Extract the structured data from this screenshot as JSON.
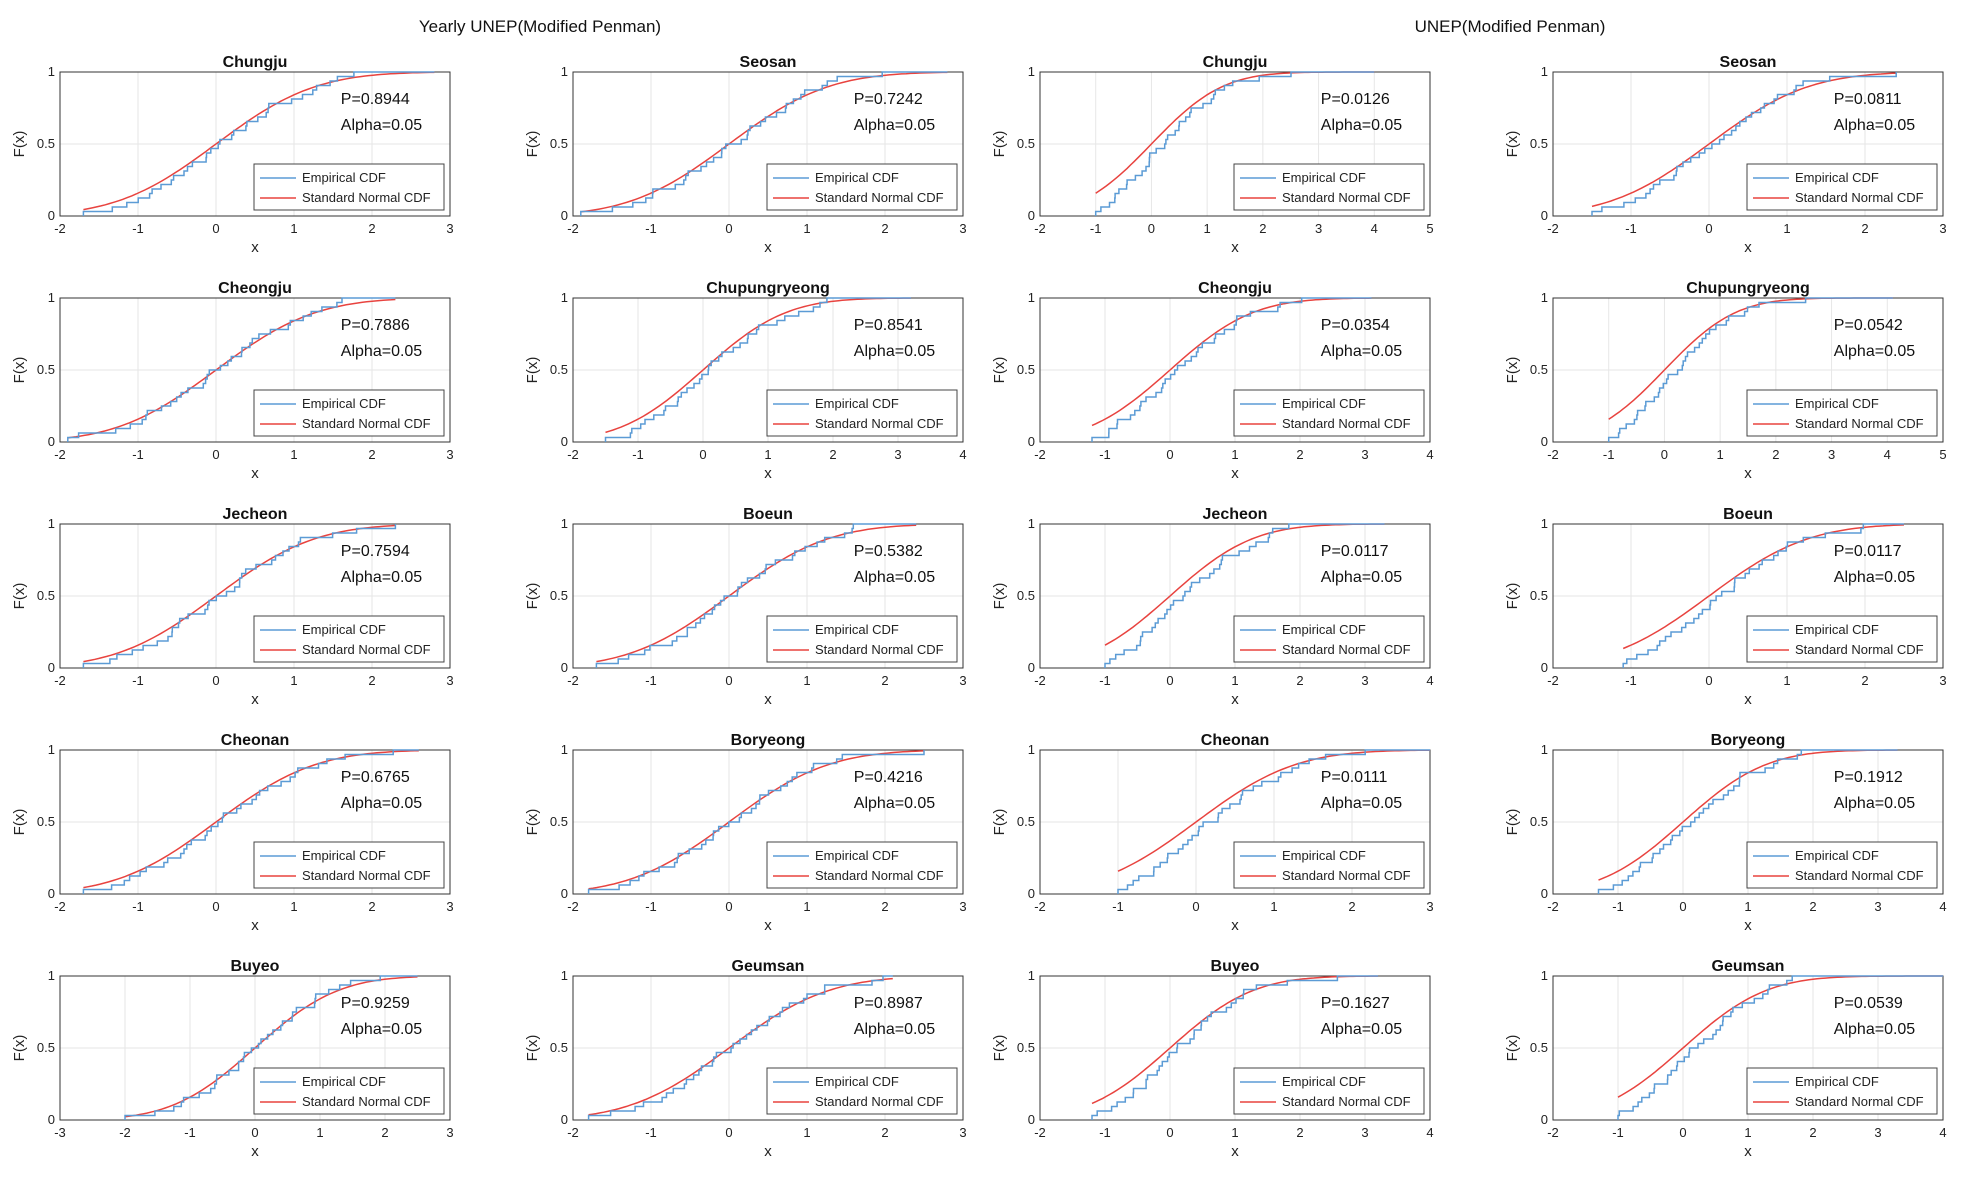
{
  "figure": {
    "group_titles": [
      "Yearly UNEP(Modified Penman)",
      "UNEP(Modified Penman)"
    ],
    "legend": [
      "Empirical CDF",
      "Standard Normal CDF"
    ],
    "colors": {
      "empirical": "#5b9bd5",
      "normal": "#e8433f",
      "grid": "#e6e6e6",
      "axis": "#333333"
    }
  },
  "chart_data": [
    {
      "type": "line",
      "title": "Chungju",
      "xlabel": "x",
      "ylabel": "F(x)",
      "xlim": [
        -2,
        3
      ],
      "ylim": [
        0,
        1
      ],
      "xticks": [
        -2,
        -1,
        0,
        1,
        2,
        3
      ],
      "yticks": [
        0,
        0.5,
        1
      ],
      "p_label": "P=0.8944",
      "alpha_label": "Alpha=0.05",
      "data_range": [
        -1.7,
        2.8
      ],
      "series": [
        {
          "name": "Empirical CDF"
        },
        {
          "name": "Standard Normal CDF"
        }
      ]
    },
    {
      "type": "line",
      "title": "Seosan",
      "xlabel": "x",
      "ylabel": "F(x)",
      "xlim": [
        -2,
        3
      ],
      "ylim": [
        0,
        1
      ],
      "xticks": [
        -2,
        -1,
        0,
        1,
        2,
        3
      ],
      "yticks": [
        0,
        0.5,
        1
      ],
      "p_label": "P=0.7242",
      "alpha_label": "Alpha=0.05",
      "data_range": [
        -1.9,
        2.8
      ],
      "series": [
        {
          "name": "Empirical CDF"
        },
        {
          "name": "Standard Normal CDF"
        }
      ]
    },
    {
      "type": "line",
      "title": "Chungju",
      "xlabel": "x",
      "ylabel": "F(x)",
      "xlim": [
        -2,
        5
      ],
      "ylim": [
        0,
        1
      ],
      "xticks": [
        -2,
        -1,
        0,
        1,
        2,
        3,
        4,
        5
      ],
      "yticks": [
        0,
        0.5,
        1
      ],
      "p_label": "P=0.0126",
      "alpha_label": "Alpha=0.05",
      "data_range": [
        -1.0,
        4.0
      ],
      "series": [
        {
          "name": "Empirical CDF"
        },
        {
          "name": "Standard Normal CDF"
        }
      ]
    },
    {
      "type": "line",
      "title": "Seosan",
      "xlabel": "x",
      "ylabel": "F(x)",
      "xlim": [
        -2,
        3
      ],
      "ylim": [
        0,
        1
      ],
      "xticks": [
        -2,
        -1,
        0,
        1,
        2,
        3
      ],
      "yticks": [
        0,
        0.5,
        1
      ],
      "p_label": "P=0.0811",
      "alpha_label": "Alpha=0.05",
      "data_range": [
        -1.5,
        2.4
      ],
      "series": [
        {
          "name": "Empirical CDF"
        },
        {
          "name": "Standard Normal CDF"
        }
      ]
    },
    {
      "type": "line",
      "title": "Cheongju",
      "xlabel": "x",
      "ylabel": "F(x)",
      "xlim": [
        -2,
        3
      ],
      "ylim": [
        0,
        1
      ],
      "xticks": [
        -2,
        -1,
        0,
        1,
        2,
        3
      ],
      "yticks": [
        0,
        0.5,
        1
      ],
      "p_label": "P=0.7886",
      "alpha_label": "Alpha=0.05",
      "data_range": [
        -1.9,
        2.3
      ],
      "series": [
        {
          "name": "Empirical CDF"
        },
        {
          "name": "Standard Normal CDF"
        }
      ]
    },
    {
      "type": "line",
      "title": "Chupungryeong",
      "xlabel": "x",
      "ylabel": "F(x)",
      "xlim": [
        -2,
        4
      ],
      "ylim": [
        0,
        1
      ],
      "xticks": [
        -2,
        -1,
        0,
        1,
        2,
        3,
        4
      ],
      "yticks": [
        0,
        0.5,
        1
      ],
      "p_label": "P=0.8541",
      "alpha_label": "Alpha=0.05",
      "data_range": [
        -1.5,
        3.2
      ],
      "series": [
        {
          "name": "Empirical CDF"
        },
        {
          "name": "Standard Normal CDF"
        }
      ]
    },
    {
      "type": "line",
      "title": "Cheongju",
      "xlabel": "x",
      "ylabel": "F(x)",
      "xlim": [
        -2,
        4
      ],
      "ylim": [
        0,
        1
      ],
      "xticks": [
        -2,
        -1,
        0,
        1,
        2,
        3,
        4
      ],
      "yticks": [
        0,
        0.5,
        1
      ],
      "p_label": "P=0.0354",
      "alpha_label": "Alpha=0.05",
      "data_range": [
        -1.2,
        3.1
      ],
      "series": [
        {
          "name": "Empirical CDF"
        },
        {
          "name": "Standard Normal CDF"
        }
      ]
    },
    {
      "type": "line",
      "title": "Chupungryeong",
      "xlabel": "x",
      "ylabel": "F(x)",
      "xlim": [
        -2,
        5
      ],
      "ylim": [
        0,
        1
      ],
      "xticks": [
        -2,
        -1,
        0,
        1,
        2,
        3,
        4,
        5
      ],
      "yticks": [
        0,
        0.5,
        1
      ],
      "p_label": "P=0.0542",
      "alpha_label": "Alpha=0.05",
      "data_range": [
        -1.0,
        4.1
      ],
      "series": [
        {
          "name": "Empirical CDF"
        },
        {
          "name": "Standard Normal CDF"
        }
      ]
    },
    {
      "type": "line",
      "title": "Jecheon",
      "xlabel": "x",
      "ylabel": "F(x)",
      "xlim": [
        -2,
        3
      ],
      "ylim": [
        0,
        1
      ],
      "xticks": [
        -2,
        -1,
        0,
        1,
        2,
        3
      ],
      "yticks": [
        0,
        0.5,
        1
      ],
      "p_label": "P=0.7594",
      "alpha_label": "Alpha=0.05",
      "data_range": [
        -1.7,
        2.3
      ],
      "series": [
        {
          "name": "Empirical CDF"
        },
        {
          "name": "Standard Normal CDF"
        }
      ]
    },
    {
      "type": "line",
      "title": "Boeun",
      "xlabel": "x",
      "ylabel": "F(x)",
      "xlim": [
        -2,
        3
      ],
      "ylim": [
        0,
        1
      ],
      "xticks": [
        -2,
        -1,
        0,
        1,
        2,
        3
      ],
      "yticks": [
        0,
        0.5,
        1
      ],
      "p_label": "P=0.5382",
      "alpha_label": "Alpha=0.05",
      "data_range": [
        -1.7,
        2.4
      ],
      "series": [
        {
          "name": "Empirical CDF"
        },
        {
          "name": "Standard Normal CDF"
        }
      ]
    },
    {
      "type": "line",
      "title": "Jecheon",
      "xlabel": "x",
      "ylabel": "F(x)",
      "xlim": [
        -2,
        4
      ],
      "ylim": [
        0,
        1
      ],
      "xticks": [
        -2,
        -1,
        0,
        1,
        2,
        3,
        4
      ],
      "yticks": [
        0,
        0.5,
        1
      ],
      "p_label": "P=0.0117",
      "alpha_label": "Alpha=0.05",
      "data_range": [
        -1.0,
        3.3
      ],
      "series": [
        {
          "name": "Empirical CDF"
        },
        {
          "name": "Standard Normal CDF"
        }
      ]
    },
    {
      "type": "line",
      "title": "Boeun",
      "xlabel": "x",
      "ylabel": "F(x)",
      "xlim": [
        -2,
        3
      ],
      "ylim": [
        0,
        1
      ],
      "xticks": [
        -2,
        -1,
        0,
        1,
        2,
        3
      ],
      "yticks": [
        0,
        0.5,
        1
      ],
      "p_label": "P=0.0117",
      "alpha_label": "Alpha=0.05",
      "data_range": [
        -1.1,
        2.5
      ],
      "series": [
        {
          "name": "Empirical CDF"
        },
        {
          "name": "Standard Normal CDF"
        }
      ]
    },
    {
      "type": "line",
      "title": "Cheonan",
      "xlabel": "x",
      "ylabel": "F(x)",
      "xlim": [
        -2,
        3
      ],
      "ylim": [
        0,
        1
      ],
      "xticks": [
        -2,
        -1,
        0,
        1,
        2,
        3
      ],
      "yticks": [
        0,
        0.5,
        1
      ],
      "p_label": "P=0.6765",
      "alpha_label": "Alpha=0.05",
      "data_range": [
        -1.7,
        2.6
      ],
      "series": [
        {
          "name": "Empirical CDF"
        },
        {
          "name": "Standard Normal CDF"
        }
      ]
    },
    {
      "type": "line",
      "title": "Boryeong",
      "xlabel": "x",
      "ylabel": "F(x)",
      "xlim": [
        -2,
        3
      ],
      "ylim": [
        0,
        1
      ],
      "xticks": [
        -2,
        -1,
        0,
        1,
        2,
        3
      ],
      "yticks": [
        0,
        0.5,
        1
      ],
      "p_label": "P=0.4216",
      "alpha_label": "Alpha=0.05",
      "data_range": [
        -1.8,
        2.5
      ],
      "series": [
        {
          "name": "Empirical CDF"
        },
        {
          "name": "Standard Normal CDF"
        }
      ]
    },
    {
      "type": "line",
      "title": "Cheonan",
      "xlabel": "x",
      "ylabel": "F(x)",
      "xlim": [
        -2,
        3
      ],
      "ylim": [
        0,
        1
      ],
      "xticks": [
        -2,
        -1,
        0,
        1,
        2,
        3
      ],
      "yticks": [
        0,
        0.5,
        1
      ],
      "p_label": "P=0.0111",
      "alpha_label": "Alpha=0.05",
      "data_range": [
        -1.0,
        3.0
      ],
      "series": [
        {
          "name": "Empirical CDF"
        },
        {
          "name": "Standard Normal CDF"
        }
      ]
    },
    {
      "type": "line",
      "title": "Boryeong",
      "xlabel": "x",
      "ylabel": "F(x)",
      "xlim": [
        -2,
        4
      ],
      "ylim": [
        0,
        1
      ],
      "xticks": [
        -2,
        -1,
        0,
        1,
        2,
        3,
        4
      ],
      "yticks": [
        0,
        0.5,
        1
      ],
      "p_label": "P=0.1912",
      "alpha_label": "Alpha=0.05",
      "data_range": [
        -1.3,
        3.3
      ],
      "series": [
        {
          "name": "Empirical CDF"
        },
        {
          "name": "Standard Normal CDF"
        }
      ]
    },
    {
      "type": "line",
      "title": "Buyeo",
      "xlabel": "x",
      "ylabel": "F(x)",
      "xlim": [
        -3,
        3
      ],
      "ylim": [
        0,
        1
      ],
      "xticks": [
        -3,
        -2,
        -1,
        0,
        1,
        2,
        3
      ],
      "yticks": [
        0,
        0.5,
        1
      ],
      "p_label": "P=0.9259",
      "alpha_label": "Alpha=0.05",
      "data_range": [
        -2.0,
        2.5
      ],
      "series": [
        {
          "name": "Empirical CDF"
        },
        {
          "name": "Standard Normal CDF"
        }
      ]
    },
    {
      "type": "line",
      "title": "Geumsan",
      "xlabel": "x",
      "ylabel": "F(x)",
      "xlim": [
        -2,
        3
      ],
      "ylim": [
        0,
        1
      ],
      "xticks": [
        -2,
        -1,
        0,
        1,
        2,
        3
      ],
      "yticks": [
        0,
        0.5,
        1
      ],
      "p_label": "P=0.8987",
      "alpha_label": "Alpha=0.05",
      "data_range": [
        -1.8,
        2.1
      ],
      "series": [
        {
          "name": "Empirical CDF"
        },
        {
          "name": "Standard Normal CDF"
        }
      ]
    },
    {
      "type": "line",
      "title": "Buyeo",
      "xlabel": "x",
      "ylabel": "F(x)",
      "xlim": [
        -2,
        4
      ],
      "ylim": [
        0,
        1
      ],
      "xticks": [
        -2,
        -1,
        0,
        1,
        2,
        3,
        4
      ],
      "yticks": [
        0,
        0.5,
        1
      ],
      "p_label": "P=0.1627",
      "alpha_label": "Alpha=0.05",
      "data_range": [
        -1.2,
        3.2
      ],
      "series": [
        {
          "name": "Empirical CDF"
        },
        {
          "name": "Standard Normal CDF"
        }
      ]
    },
    {
      "type": "line",
      "title": "Geumsan",
      "xlabel": "x",
      "ylabel": "F(x)",
      "xlim": [
        -2,
        4
      ],
      "ylim": [
        0,
        1
      ],
      "xticks": [
        -2,
        -1,
        0,
        1,
        2,
        3,
        4
      ],
      "yticks": [
        0,
        0.5,
        1
      ],
      "p_label": "P=0.0539",
      "alpha_label": "Alpha=0.05",
      "data_range": [
        -1.0,
        4.0
      ],
      "series": [
        {
          "name": "Empirical CDF"
        },
        {
          "name": "Standard Normal CDF"
        }
      ]
    }
  ]
}
